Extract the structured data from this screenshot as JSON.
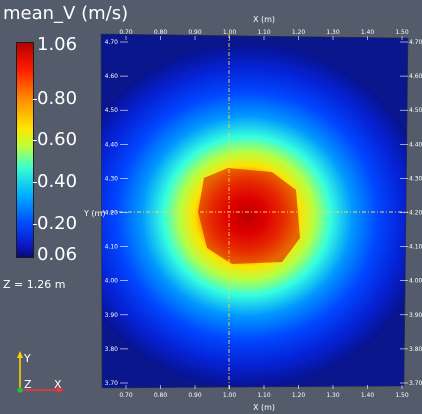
{
  "scalar_bar": {
    "title": "mean_V (m/s)",
    "max_label": "1.06",
    "labels": [
      "0.80",
      "0.60",
      "0.40",
      "0.20"
    ],
    "min_label": "0.06"
  },
  "slice_info": {
    "z_label": "Z = 1.26 m"
  },
  "axes": {
    "x_title": "X (m)",
    "y_title": "Y (m)",
    "x_ticks": [
      "0.70",
      "0.80",
      "0.90",
      "1.00",
      "1.10",
      "1.20",
      "1.30",
      "1.40",
      "1.50"
    ],
    "y_ticks": [
      "4.70",
      "4.60",
      "4.50",
      "4.40",
      "4.30",
      "4.20",
      "4.10",
      "4.00",
      "3.90",
      "3.80",
      "3.70"
    ]
  },
  "triad": {
    "y": "Y",
    "z": "Z",
    "x": "X"
  },
  "colors": {
    "background": "#545b6b",
    "crosshair": "#ffd24a",
    "low": "#0a0a78",
    "high": "#b40000"
  }
}
